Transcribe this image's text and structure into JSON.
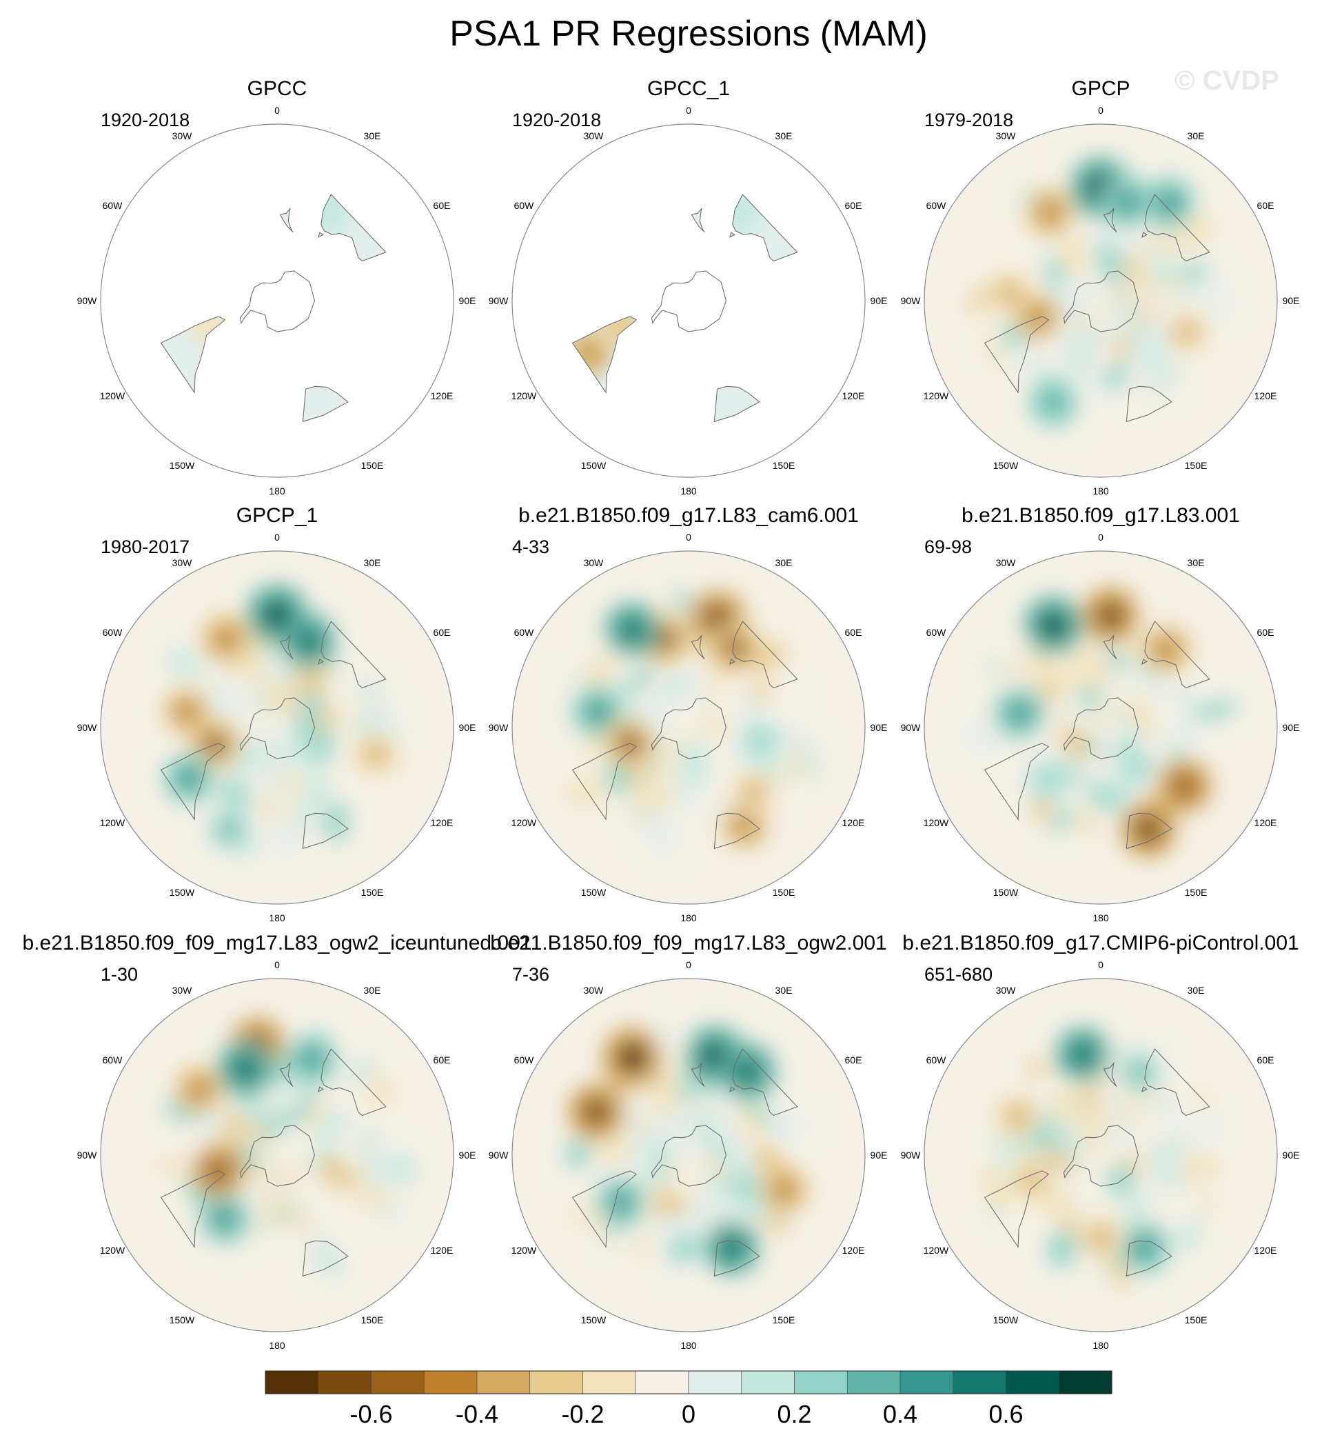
{
  "title": "PSA1 PR Regressions (MAM)",
  "watermark": "© CVDP",
  "lon_labels": [
    "0",
    "30E",
    "60E",
    "90E",
    "120E",
    "150E",
    "180",
    "150W",
    "120W",
    "90W",
    "60W",
    "30W"
  ],
  "colors": {
    "levels": [
      "#543005",
      "#7a4a0f",
      "#9c6119",
      "#bf812d",
      "#d5aa62",
      "#e7ca8e",
      "#f3e3bd",
      "#f5f1e6",
      "#e3efec",
      "#c2e7df",
      "#94d4c8",
      "#62b5a7",
      "#35978f",
      "#14776d",
      "#01594d",
      "#003c30"
    ],
    "coast": "#6e6e6e",
    "ocean_panel_mask": "#ffffff"
  },
  "chart_data": {
    "type": "heatmap",
    "projection": "south polar stereographic",
    "variable": "PR regression onto PSA1",
    "season": "MAM",
    "colorbar": {
      "levels": [
        -0.7,
        -0.6,
        -0.5,
        -0.4,
        -0.3,
        -0.2,
        -0.1,
        0,
        0.1,
        0.2,
        0.3,
        0.4,
        0.5,
        0.6,
        0.7
      ],
      "tick_labels": [
        "-0.6",
        "-0.4",
        "-0.2",
        "0",
        "0.2",
        "0.4",
        "0.6"
      ],
      "tick_values": [
        -0.6,
        -0.4,
        -0.2,
        0,
        0.2,
        0.4,
        0.6
      ]
    },
    "panels": [
      {
        "name": "GPCC",
        "period": "1920-2018",
        "land_only": true,
        "anomalies": [
          {
            "lon": 150,
            "lat": -30,
            "value": 0.15
          },
          {
            "lon": -70,
            "lat": -45,
            "value": -0.15
          },
          {
            "lon": -60,
            "lat": -25,
            "value": 0.1
          }
        ]
      },
      {
        "name": "GPCC_1",
        "period": "1920-2018",
        "land_only": true,
        "anomalies": [
          {
            "lon": 150,
            "lat": -30,
            "value": 0.15
          },
          {
            "lon": -62,
            "lat": -25,
            "value": -0.3
          },
          {
            "lon": -70,
            "lat": -45,
            "value": -0.2
          }
        ]
      },
      {
        "name": "GPCP",
        "period": "1979-2018",
        "land_only": false,
        "anomalies": [
          {
            "lon": -150,
            "lat": -30,
            "value": -0.4
          },
          {
            "lon": -95,
            "lat": -35,
            "value": -0.35
          },
          {
            "lon": -75,
            "lat": -50,
            "value": -0.4
          },
          {
            "lon": 180,
            "lat": -25,
            "value": 0.7
          },
          {
            "lon": 165,
            "lat": -30,
            "value": 0.5
          },
          {
            "lon": 145,
            "lat": -22,
            "value": 0.5
          },
          {
            "lon": -25,
            "lat": -25,
            "value": 0.4
          },
          {
            "lon": 70,
            "lat": -35,
            "value": -0.3
          },
          {
            "lon": 45,
            "lat": -45,
            "value": 0.15
          }
        ]
      },
      {
        "name": "GPCP_1",
        "period": "1980-2017",
        "land_only": false,
        "anomalies": [
          {
            "lon": -150,
            "lat": -30,
            "value": -0.45
          },
          {
            "lon": -100,
            "lat": -35,
            "value": -0.4
          },
          {
            "lon": -75,
            "lat": -50,
            "value": -0.5
          },
          {
            "lon": 180,
            "lat": -25,
            "value": 0.7
          },
          {
            "lon": 160,
            "lat": -35,
            "value": 0.55
          },
          {
            "lon": -25,
            "lat": -25,
            "value": 0.35
          },
          {
            "lon": -60,
            "lat": -30,
            "value": 0.45
          },
          {
            "lon": 75,
            "lat": -30,
            "value": -0.35
          }
        ]
      },
      {
        "name": "b.e21.B1850.f09_g17.L83_cam6.001",
        "period": "4-33",
        "land_only": false,
        "anomalies": [
          {
            "lon": 165,
            "lat": -25,
            "value": -0.6
          },
          {
            "lon": 150,
            "lat": -35,
            "value": -0.5
          },
          {
            "lon": -165,
            "lat": -35,
            "value": -0.5
          },
          {
            "lon": 30,
            "lat": -25,
            "value": -0.4
          },
          {
            "lon": 45,
            "lat": -35,
            "value": -0.35
          },
          {
            "lon": -150,
            "lat": -25,
            "value": 0.55
          },
          {
            "lon": -100,
            "lat": -35,
            "value": 0.5
          },
          {
            "lon": 80,
            "lat": -45,
            "value": 0.3
          },
          {
            "lon": -75,
            "lat": -52,
            "value": -0.5
          }
        ]
      },
      {
        "name": "b.e21.B1850.f09_g17.L83.001",
        "period": "69-98",
        "land_only": false,
        "anomalies": [
          {
            "lon": 175,
            "lat": -25,
            "value": -0.6
          },
          {
            "lon": 140,
            "lat": -30,
            "value": -0.45
          },
          {
            "lon": 25,
            "lat": -25,
            "value": -0.6
          },
          {
            "lon": 55,
            "lat": -30,
            "value": -0.55
          },
          {
            "lon": -155,
            "lat": -25,
            "value": 0.65
          },
          {
            "lon": -100,
            "lat": -40,
            "value": 0.5
          },
          {
            "lon": -45,
            "lat": -45,
            "value": 0.3
          }
        ]
      },
      {
        "name": "b.e21.B1850.f09_f09_mg17.L83_ogw2_iceuntuned.001",
        "period": "1-30",
        "land_only": false,
        "anomalies": [
          {
            "lon": -170,
            "lat": -25,
            "value": -0.55
          },
          {
            "lon": -130,
            "lat": -30,
            "value": -0.4
          },
          {
            "lon": -160,
            "lat": -35,
            "value": 0.6
          },
          {
            "lon": -40,
            "lat": -40,
            "value": 0.5
          },
          {
            "lon": -65,
            "lat": -45,
            "value": 0.4
          },
          {
            "lon": 160,
            "lat": -30,
            "value": 0.45
          },
          {
            "lon": -75,
            "lat": -52,
            "value": -0.55
          }
        ]
      },
      {
        "name": "b.e21.B1850.f09_f09_mg17.L83_ogw2.001",
        "period": "7-36",
        "land_only": false,
        "anomalies": [
          {
            "lon": -150,
            "lat": -25,
            "value": -0.7
          },
          {
            "lon": -115,
            "lat": -30,
            "value": -0.6
          },
          {
            "lon": 165,
            "lat": -30,
            "value": 0.7
          },
          {
            "lon": 145,
            "lat": -30,
            "value": 0.6
          },
          {
            "lon": 25,
            "lat": -30,
            "value": 0.55
          },
          {
            "lon": -55,
            "lat": -40,
            "value": 0.45
          },
          {
            "lon": 70,
            "lat": -30,
            "value": -0.4
          }
        ]
      },
      {
        "name": "b.e21.B1850.f09_g17.CMIP6-piControl.001",
        "period": "651-680",
        "land_only": false,
        "anomalies": [
          {
            "lon": -170,
            "lat": -30,
            "value": 0.55
          },
          {
            "lon": 25,
            "lat": -30,
            "value": 0.5
          },
          {
            "lon": 0,
            "lat": -40,
            "value": -0.35
          },
          {
            "lon": -115,
            "lat": -35,
            "value": -0.35
          },
          {
            "lon": 155,
            "lat": -35,
            "value": 0.35
          },
          {
            "lon": -70,
            "lat": -45,
            "value": -0.3
          }
        ]
      }
    ]
  }
}
